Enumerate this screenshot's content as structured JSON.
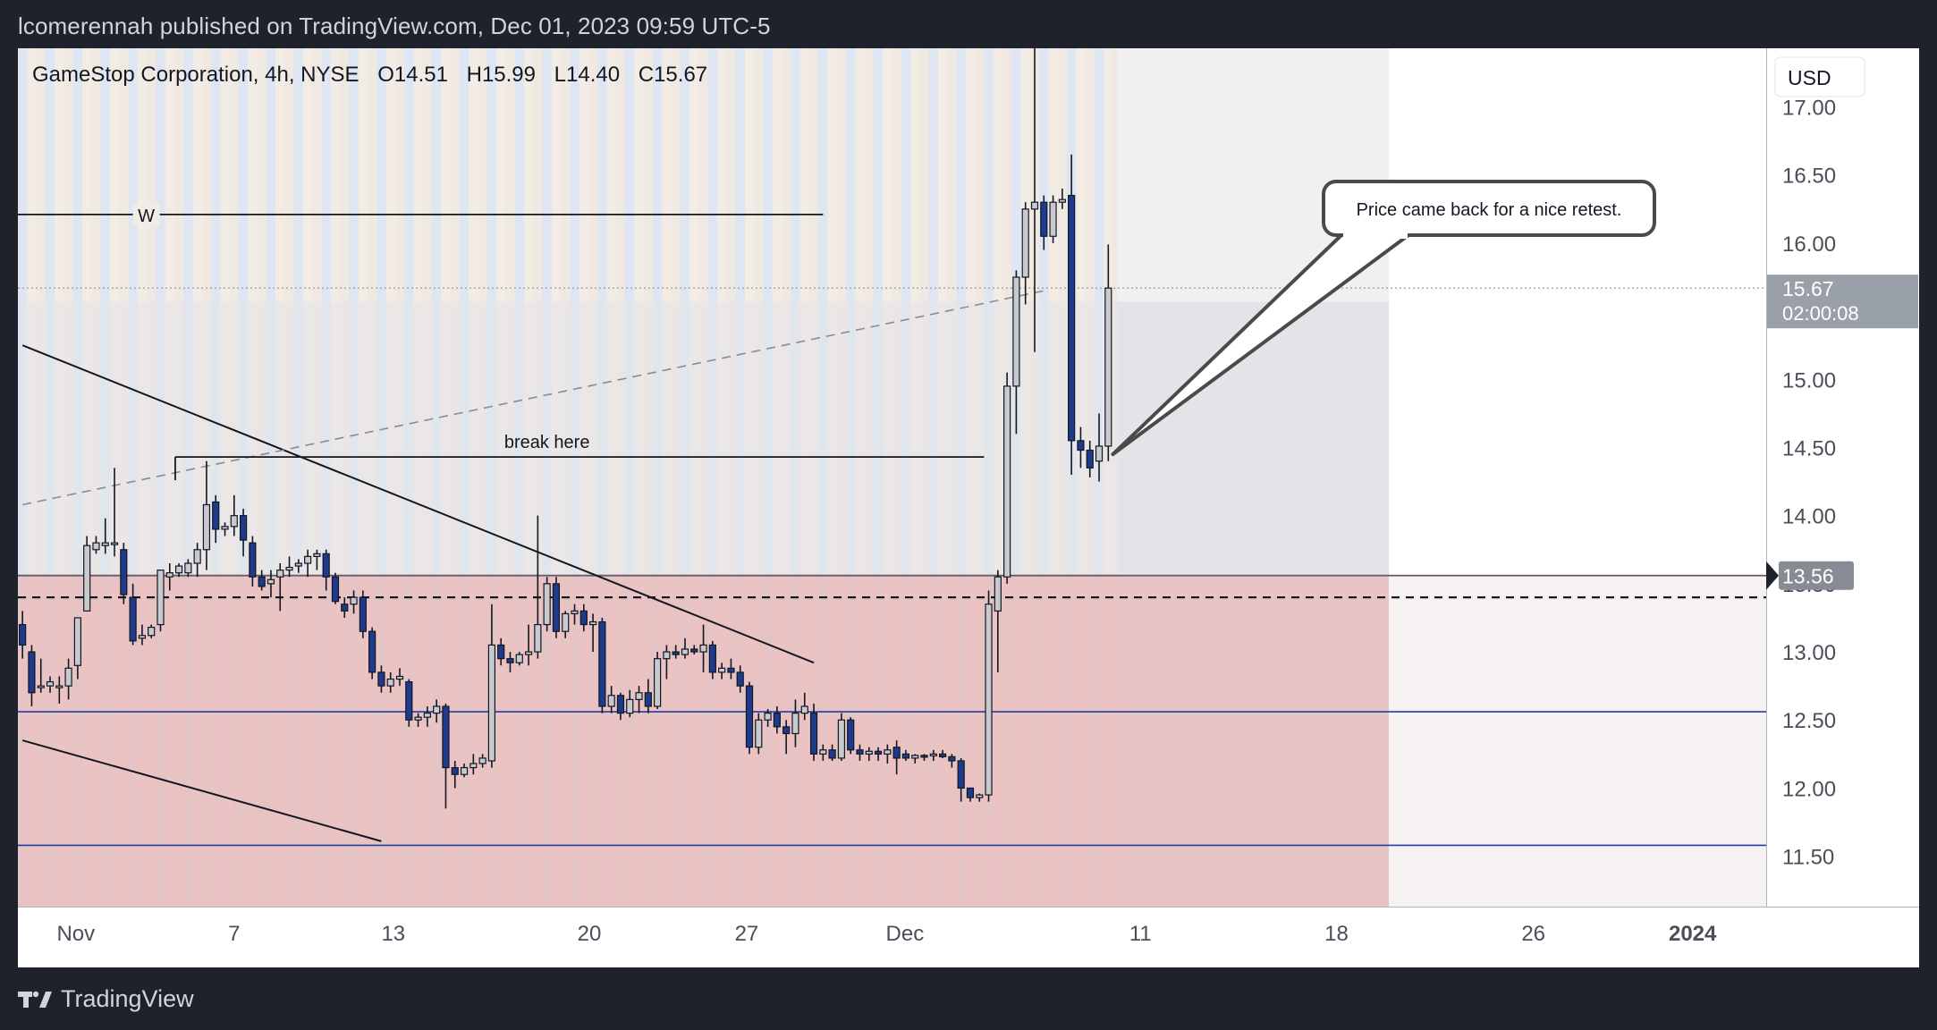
{
  "header": {
    "publisher_text": "lcomerennah published on TradingView.com, Dec 01, 2023 09:59 UTC-5"
  },
  "footer": {
    "brand": "TradingView"
  },
  "colors": {
    "bull": "#c8cacf",
    "bear": "#1e3a8a",
    "wick": "#131722",
    "demand_zone": "#e8bcbc",
    "hline_blue": "#1e40a0",
    "price_badge": "#9aa0a8",
    "level_badge": "#868b94"
  },
  "chart_data": {
    "type": "candlestick",
    "title": "GameStop Corporation, 4h, NYSE",
    "legend": {
      "symbol": "GameStop Corporation, 4h, NYSE",
      "open": "O14.51",
      "high": "H15.99",
      "low": "L14.40",
      "close": "C15.67"
    },
    "currency": "USD",
    "ylim": [
      11.13,
      17.43
    ],
    "y_ticks": [
      "17.00",
      "16.50",
      "16.00",
      "15.50",
      "15.00",
      "14.50",
      "14.00",
      "13.50",
      "13.00",
      "12.50",
      "12.00",
      "11.50"
    ],
    "y_tick_values": [
      17.0,
      16.5,
      16.0,
      15.5,
      15.0,
      14.5,
      14.0,
      13.5,
      13.0,
      12.5,
      12.0,
      11.5
    ],
    "x_ticks": [
      {
        "label": "Nov",
        "bar": 5.8
      },
      {
        "label": "7",
        "bar": 23
      },
      {
        "label": "13",
        "bar": 40.3
      },
      {
        "label": "20",
        "bar": 61.6
      },
      {
        "label": "27",
        "bar": 78.7
      },
      {
        "label": "Dec",
        "bar": 95.9
      },
      {
        "label": "11",
        "bar": 121.5
      },
      {
        "label": "18",
        "bar": 142.8
      },
      {
        "label": "26",
        "bar": 164.2
      },
      {
        "label": "2024",
        "bar": 181.5
      }
    ],
    "bars_visible": 190,
    "candles": [
      [
        13.2,
        13.3,
        12.95,
        13.05
      ],
      [
        13.0,
        13.05,
        12.6,
        12.7
      ],
      [
        12.75,
        12.95,
        12.7,
        12.75
      ],
      [
        12.75,
        12.82,
        12.7,
        12.78
      ],
      [
        12.75,
        12.82,
        12.62,
        12.75
      ],
      [
        12.75,
        12.95,
        12.65,
        12.88
      ],
      [
        12.9,
        13.25,
        12.8,
        13.25
      ],
      [
        13.3,
        13.85,
        13.3,
        13.78
      ],
      [
        13.75,
        13.85,
        13.72,
        13.8
      ],
      [
        13.78,
        13.98,
        13.72,
        13.8
      ],
      [
        13.8,
        14.35,
        13.7,
        13.8
      ],
      [
        13.75,
        13.8,
        13.35,
        13.42
      ],
      [
        13.4,
        13.5,
        13.05,
        13.08
      ],
      [
        13.1,
        13.2,
        13.05,
        13.12
      ],
      [
        13.12,
        13.2,
        13.1,
        13.18
      ],
      [
        13.2,
        13.6,
        13.15,
        13.6
      ],
      [
        13.55,
        13.65,
        13.45,
        13.58
      ],
      [
        13.58,
        13.65,
        13.55,
        13.63
      ],
      [
        13.58,
        13.68,
        13.55,
        13.65
      ],
      [
        13.65,
        13.8,
        13.55,
        13.75
      ],
      [
        13.75,
        14.4,
        13.6,
        14.08
      ],
      [
        14.1,
        14.15,
        13.8,
        13.9
      ],
      [
        13.9,
        13.95,
        13.85,
        13.92
      ],
      [
        13.92,
        14.15,
        13.85,
        14.0
      ],
      [
        14.0,
        14.05,
        13.7,
        13.82
      ],
      [
        13.8,
        13.85,
        13.48,
        13.55
      ],
      [
        13.55,
        13.6,
        13.45,
        13.48
      ],
      [
        13.5,
        13.6,
        13.4,
        13.53
      ],
      [
        13.55,
        13.65,
        13.3,
        13.6
      ],
      [
        13.6,
        13.7,
        13.55,
        13.62
      ],
      [
        13.63,
        13.68,
        13.58,
        13.65
      ],
      [
        13.65,
        13.75,
        13.55,
        13.7
      ],
      [
        13.7,
        13.75,
        13.6,
        13.72
      ],
      [
        13.72,
        13.75,
        13.45,
        13.55
      ],
      [
        13.55,
        13.58,
        13.35,
        13.37
      ],
      [
        13.35,
        13.4,
        13.25,
        13.3
      ],
      [
        13.35,
        13.45,
        13.28,
        13.4
      ],
      [
        13.4,
        13.45,
        13.1,
        13.15
      ],
      [
        13.15,
        13.18,
        12.8,
        12.85
      ],
      [
        12.85,
        12.9,
        12.7,
        12.75
      ],
      [
        12.75,
        12.85,
        12.7,
        12.8
      ],
      [
        12.8,
        12.88,
        12.75,
        12.82
      ],
      [
        12.78,
        12.8,
        12.45,
        12.5
      ],
      [
        12.5,
        12.55,
        12.45,
        12.52
      ],
      [
        12.52,
        12.6,
        12.45,
        12.55
      ],
      [
        12.55,
        12.65,
        12.48,
        12.6
      ],
      [
        12.6,
        12.62,
        11.85,
        12.15
      ],
      [
        12.15,
        12.2,
        12.0,
        12.1
      ],
      [
        12.1,
        12.18,
        12.08,
        12.15
      ],
      [
        12.15,
        12.25,
        12.1,
        12.18
      ],
      [
        12.18,
        12.25,
        12.15,
        12.22
      ],
      [
        12.2,
        13.35,
        12.15,
        13.05
      ],
      [
        13.05,
        13.1,
        12.9,
        12.95
      ],
      [
        12.95,
        13.0,
        12.85,
        12.92
      ],
      [
        12.92,
        13.0,
        12.9,
        12.98
      ],
      [
        12.98,
        13.2,
        12.9,
        13.0
      ],
      [
        13.0,
        14.0,
        12.95,
        13.2
      ],
      [
        13.2,
        13.55,
        13.15,
        13.5
      ],
      [
        13.5,
        13.55,
        13.1,
        13.15
      ],
      [
        13.15,
        13.3,
        13.1,
        13.28
      ],
      [
        13.28,
        13.35,
        13.2,
        13.3
      ],
      [
        13.3,
        13.35,
        13.15,
        13.2
      ],
      [
        13.2,
        13.28,
        13.0,
        13.22
      ],
      [
        13.22,
        13.25,
        12.55,
        12.6
      ],
      [
        12.6,
        12.75,
        12.55,
        12.68
      ],
      [
        12.68,
        12.7,
        12.5,
        12.55
      ],
      [
        12.55,
        12.72,
        12.52,
        12.65
      ],
      [
        12.65,
        12.75,
        12.55,
        12.7
      ],
      [
        12.7,
        12.8,
        12.55,
        12.6
      ],
      [
        12.6,
        13.0,
        12.58,
        12.95
      ],
      [
        12.95,
        13.05,
        12.8,
        13.0
      ],
      [
        13.0,
        13.05,
        12.95,
        12.98
      ],
      [
        12.98,
        13.1,
        12.95,
        13.02
      ],
      [
        13.02,
        13.05,
        12.98,
        13.0
      ],
      [
        13.0,
        13.2,
        12.85,
        13.05
      ],
      [
        13.05,
        13.08,
        12.8,
        12.85
      ],
      [
        12.85,
        12.92,
        12.8,
        12.88
      ],
      [
        12.88,
        12.95,
        12.8,
        12.85
      ],
      [
        12.85,
        12.9,
        12.7,
        12.75
      ],
      [
        12.75,
        12.78,
        12.25,
        12.3
      ],
      [
        12.3,
        12.55,
        12.25,
        12.5
      ],
      [
        12.5,
        12.58,
        12.45,
        12.55
      ],
      [
        12.55,
        12.6,
        12.4,
        12.45
      ],
      [
        12.45,
        12.5,
        12.25,
        12.4
      ],
      [
        12.4,
        12.65,
        12.3,
        12.55
      ],
      [
        12.55,
        12.7,
        12.5,
        12.6
      ],
      [
        12.55,
        12.62,
        12.2,
        12.25
      ],
      [
        12.25,
        12.32,
        12.2,
        12.28
      ],
      [
        12.28,
        12.32,
        12.2,
        12.22
      ],
      [
        12.22,
        12.55,
        12.2,
        12.5
      ],
      [
        12.5,
        12.52,
        12.25,
        12.28
      ],
      [
        12.28,
        12.32,
        12.2,
        12.25
      ],
      [
        12.25,
        12.3,
        12.2,
        12.27
      ],
      [
        12.27,
        12.3,
        12.2,
        12.25
      ],
      [
        12.25,
        12.32,
        12.18,
        12.28
      ],
      [
        12.3,
        12.35,
        12.1,
        12.22
      ],
      [
        12.25,
        12.28,
        12.2,
        12.22
      ],
      [
        12.22,
        12.25,
        12.18,
        12.24
      ],
      [
        12.24,
        12.25,
        12.2,
        12.23
      ],
      [
        12.25,
        12.28,
        12.2,
        12.25
      ],
      [
        12.25,
        12.28,
        12.22,
        12.23
      ]
    ],
    "candles_scaled_note": "candle series continues from bar 101",
    "candles_tail": [
      [
        12.23,
        12.25,
        12.15,
        12.2
      ],
      [
        12.2,
        12.22,
        11.9,
        12.0
      ],
      [
        12.0,
        12.0,
        11.9,
        11.93
      ],
      [
        11.93,
        11.96,
        11.9,
        11.95
      ],
      [
        11.95,
        13.45,
        11.9,
        13.35
      ],
      [
        13.3,
        13.6,
        12.85,
        13.55
      ],
      [
        13.55,
        15.05,
        13.5,
        14.95
      ],
      [
        14.95,
        15.8,
        14.6,
        15.75
      ],
      [
        15.75,
        16.3,
        15.55,
        16.25
      ],
      [
        16.25,
        17.45,
        15.2,
        16.3
      ],
      [
        16.3,
        16.35,
        15.95,
        16.05
      ],
      [
        16.05,
        16.35,
        16.0,
        16.3
      ],
      [
        16.3,
        16.4,
        16.25,
        16.32
      ],
      [
        16.35,
        16.65,
        14.3,
        14.55
      ],
      [
        14.55,
        14.65,
        14.35,
        14.48
      ],
      [
        14.48,
        14.55,
        14.28,
        14.35
      ],
      [
        14.4,
        14.75,
        14.25,
        14.51
      ],
      [
        14.51,
        15.99,
        14.4,
        15.67
      ]
    ],
    "annotations": {
      "w_label": "W",
      "w_level": 16.21,
      "break_label": "break here",
      "break_level": 14.43,
      "callout_text": "Price came back for a nice retest.",
      "last_price": "15.67",
      "countdown": "02:00:08",
      "level_badge": "13.56",
      "level_value": 13.56,
      "dashed_level": 13.4,
      "blue_levels": [
        12.56,
        11.58
      ],
      "zone_top": 13.57,
      "zone_bottom": 11.13,
      "grey_zone_top": 15.57,
      "trendline_1": {
        "from_bar": 0,
        "from": 15.25,
        "to_bar": 86,
        "to": 12.92
      },
      "trendline_2": {
        "from_bar": 0,
        "from": 12.35,
        "to_bar": 39,
        "to": 11.61
      },
      "dashed_trend": {
        "from_bar": 0,
        "from": 14.08,
        "to_bar": 111,
        "to": 15.65
      }
    }
  }
}
